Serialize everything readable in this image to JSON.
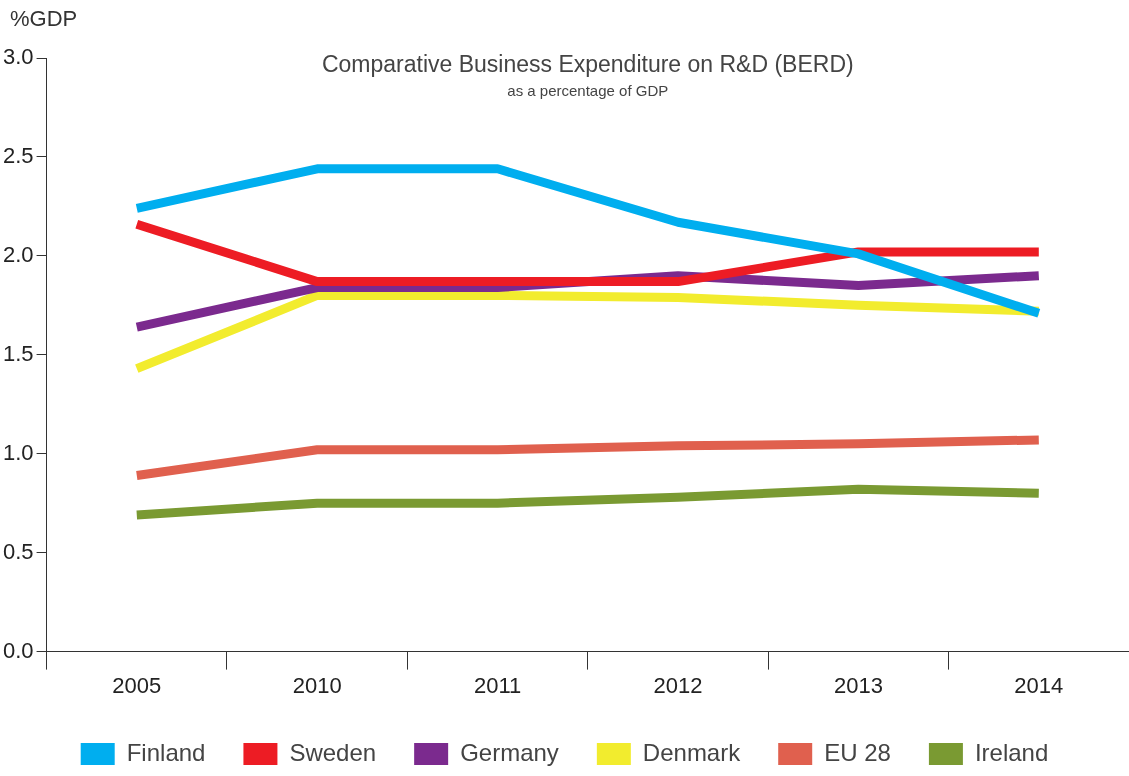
{
  "chart_data": {
    "type": "line",
    "title": "Comparative Business Expenditure on R&D (BERD)",
    "subtitle": "as a percentage of GDP",
    "ylabel": "%GDP",
    "categories": [
      "2005",
      "2010",
      "2011",
      "2012",
      "2013",
      "2014"
    ],
    "series": [
      {
        "name": "Finland",
        "color": "#00aeef",
        "values": [
          2.24,
          2.44,
          2.44,
          2.17,
          2.01,
          1.71
        ]
      },
      {
        "name": "Sweden",
        "color": "#ed1c24",
        "values": [
          2.16,
          1.87,
          1.87,
          1.87,
          2.02,
          2.02
        ]
      },
      {
        "name": "Germany",
        "color": "#7b2a8e",
        "values": [
          1.64,
          1.84,
          1.84,
          1.9,
          1.85,
          1.9
        ]
      },
      {
        "name": "Denmark",
        "color": "#f2ec2e",
        "values": [
          1.43,
          1.8,
          1.8,
          1.79,
          1.75,
          1.72
        ]
      },
      {
        "name": "EU 28",
        "color": "#e0604e",
        "values": [
          0.89,
          1.02,
          1.02,
          1.04,
          1.05,
          1.07
        ]
      },
      {
        "name": "Ireland",
        "color": "#7a9a32",
        "values": [
          0.69,
          0.75,
          0.75,
          0.78,
          0.82,
          0.8
        ]
      }
    ],
    "ylim": [
      0,
      3
    ],
    "yticks": [
      {
        "value": 0,
        "label": "0.0"
      },
      {
        "value": 0.5,
        "label": "0.5"
      },
      {
        "value": 1,
        "label": "1.0"
      },
      {
        "value": 1.5,
        "label": "1.5"
      },
      {
        "value": 2,
        "label": "2.0"
      },
      {
        "value": 2.5,
        "label": "2.5"
      },
      {
        "value": 3,
        "label": "3.0"
      }
    ],
    "grid": false,
    "legend": "bottom",
    "marker": "none",
    "line_style": "solid"
  }
}
